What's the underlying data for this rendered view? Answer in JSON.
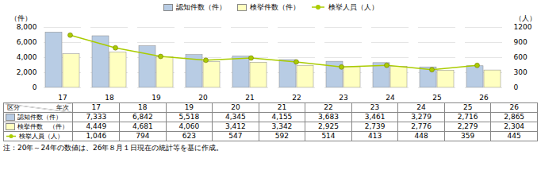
{
  "chart_data": {
    "type": "bar",
    "categories": [
      "17",
      "18",
      "19",
      "20",
      "21",
      "22",
      "23",
      "24",
      "25",
      "26"
    ],
    "series": [
      {
        "name": "認知件数（件）",
        "type": "bar",
        "color": "#b8cce4",
        "values": [
          7333,
          6842,
          5518,
          4345,
          4155,
          3683,
          3461,
          3279,
          2716,
          2865
        ],
        "value_labels": [
          "7,333",
          "6,842",
          "5,518",
          "4,345",
          "4,155",
          "3,683",
          "3,461",
          "3,279",
          "2,716",
          "2,865"
        ]
      },
      {
        "name": "検挙件数（件）",
        "type": "bar",
        "color": "#ffffc0",
        "values": [
          4449,
          4681,
          4060,
          3412,
          3342,
          2925,
          2739,
          2776,
          2279,
          2304
        ],
        "value_labels": [
          "4,449",
          "4,681",
          "4,060",
          "3,412",
          "3,342",
          "2,925",
          "2,739",
          "2,776",
          "2,279",
          "2,304"
        ]
      },
      {
        "name": "検挙人員（人）",
        "type": "line",
        "axis": "y2",
        "color": "#aacc00",
        "marker": "circle",
        "values": [
          1046,
          794,
          623,
          547,
          592,
          514,
          413,
          448,
          359,
          445
        ],
        "value_labels": [
          "1,046",
          "794",
          "623",
          "547",
          "592",
          "514",
          "413",
          "448",
          "359",
          "445"
        ]
      }
    ],
    "ylabel": "（件）",
    "y2label": "（人）",
    "ylim": [
      0,
      8000
    ],
    "yticks": [
      0,
      {
        "value": 2000,
        "label": "2,000"
      },
      {
        "value": 4000,
        "label": "4,000"
      },
      {
        "value": 6000,
        "label": "6,000"
      },
      {
        "value": 8000,
        "label": "8,000"
      }
    ],
    "y2lim": [
      0,
      1200
    ],
    "y2ticks": [
      0,
      300,
      600,
      900,
      1200
    ],
    "grid": true,
    "legend": "top",
    "table": {
      "header_labels": [
        "区分",
        "年次"
      ],
      "row_labels": [
        "認知件数（件）",
        "検挙件数　（件）",
        "検挙人員（人）"
      ]
    },
    "annotations": [
      "注：20年～24年の数値は、26年８月１日現在の統計等を基に作成。"
    ]
  }
}
